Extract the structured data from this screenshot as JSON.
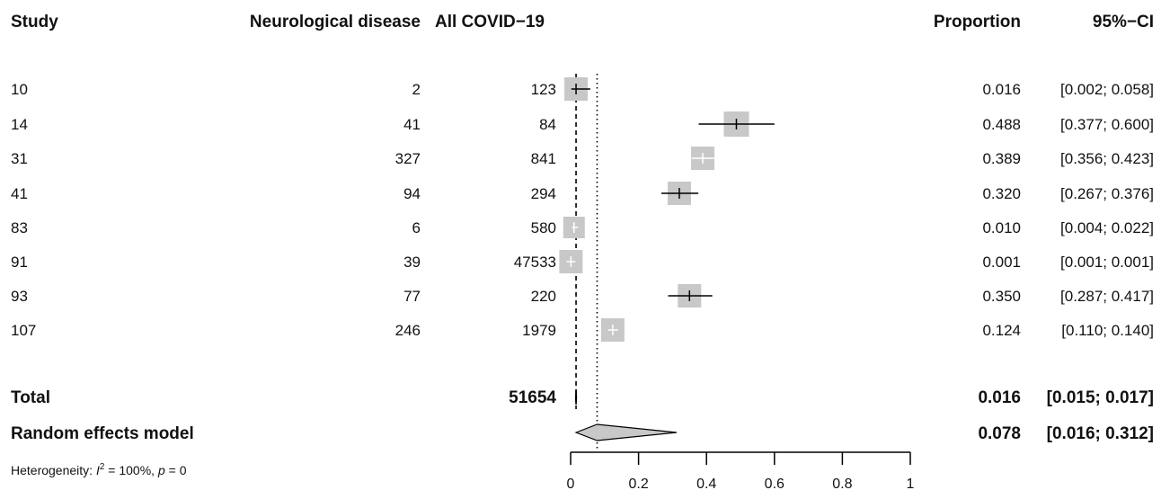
{
  "chart_data": {
    "type": "forest",
    "headers": {
      "study": "Study",
      "events": "Neurological disease",
      "total": "All COVID−19",
      "proportion": "Proportion",
      "ci": "95%−CI"
    },
    "studies": [
      {
        "study": "10",
        "events": "2",
        "total": "123",
        "proportion": 0.016,
        "lower": 0.002,
        "upper": 0.058,
        "proportion_text": "0.016",
        "ci_text": "[0.002; 0.058]",
        "marker": "gray"
      },
      {
        "study": "14",
        "events": "41",
        "total": "84",
        "proportion": 0.488,
        "lower": 0.377,
        "upper": 0.6,
        "proportion_text": "0.488",
        "ci_text": "[0.377; 0.600]",
        "marker": "gray"
      },
      {
        "study": "31",
        "events": "327",
        "total": "841",
        "proportion": 0.389,
        "lower": 0.356,
        "upper": 0.423,
        "proportion_text": "0.389",
        "ci_text": "[0.356; 0.423]",
        "marker": "light"
      },
      {
        "study": "41",
        "events": "94",
        "total": "294",
        "proportion": 0.32,
        "lower": 0.267,
        "upper": 0.376,
        "proportion_text": "0.320",
        "ci_text": "[0.267; 0.376]",
        "marker": "gray"
      },
      {
        "study": "83",
        "events": "6",
        "total": "580",
        "proportion": 0.01,
        "lower": 0.004,
        "upper": 0.022,
        "proportion_text": "0.010",
        "ci_text": "[0.004; 0.022]",
        "marker": "light"
      },
      {
        "study": "91",
        "events": "39",
        "total": "47533",
        "proportion": 0.001,
        "lower": 0.001,
        "upper": 0.001,
        "proportion_text": "0.001",
        "ci_text": "[0.001; 0.001]",
        "marker": "light"
      },
      {
        "study": "93",
        "events": "77",
        "total": "220",
        "proportion": 0.35,
        "lower": 0.287,
        "upper": 0.417,
        "proportion_text": "0.350",
        "ci_text": "[0.287; 0.417]",
        "marker": "gray"
      },
      {
        "study": "107",
        "events": "246",
        "total": "1979",
        "proportion": 0.124,
        "lower": 0.11,
        "upper": 0.14,
        "proportion_text": "0.124",
        "ci_text": "[0.110; 0.140]",
        "marker": "light"
      }
    ],
    "total": {
      "label": "Total",
      "total": "51654",
      "proportion": 0.016,
      "lower": 0.015,
      "upper": 0.017,
      "proportion_text": "0.016",
      "ci_text": "[0.015; 0.017]"
    },
    "random": {
      "label": "Random effects model",
      "proportion": 0.078,
      "lower": 0.016,
      "upper": 0.312,
      "proportion_text": "0.078",
      "ci_text": "[0.016; 0.312]"
    },
    "heterogeneity": {
      "prefix": "Heterogeneity: ",
      "i_symbol": "I",
      "i_power": "2",
      "i_value": " = 100%, ",
      "p_symbol": "p",
      "p_value": " = 0"
    },
    "x_axis": {
      "ticks": [
        0,
        0.2,
        0.4,
        0.6,
        0.8,
        1
      ],
      "tick_labels": [
        "0",
        "0.2",
        "0.4",
        "0.6",
        "0.8",
        "1"
      ],
      "xlim": [
        0,
        1
      ]
    },
    "reference_lines": {
      "fixed_effect": 0.016,
      "random_effects": 0.078
    },
    "colors": {
      "marker_gray": "#c8c8c8",
      "marker_light": "#c8c8c8",
      "diamond_fill": "#c8c8c8",
      "line": "#000000",
      "line_light": "#ffffff"
    }
  }
}
